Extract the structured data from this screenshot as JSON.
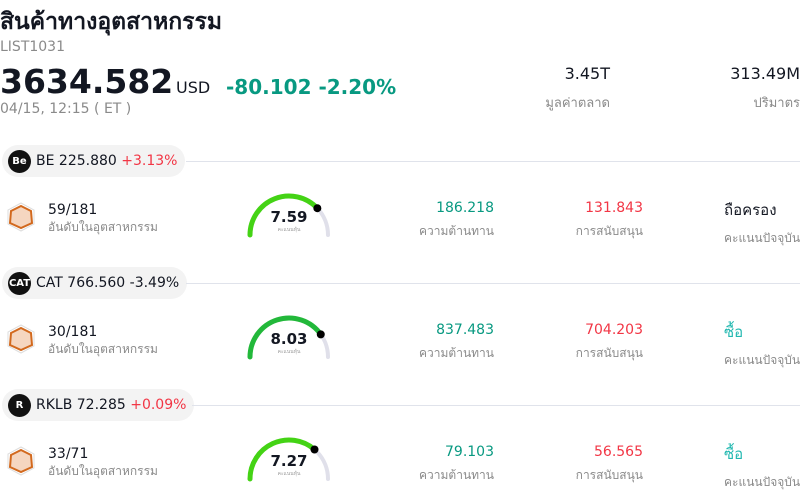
{
  "header": {
    "title": "สินค้าทางอุตสาหกรรม",
    "symbol": "LIST1031",
    "price": "3634.582",
    "currency": "USD",
    "change": "-80.102 -2.20%",
    "time": "04/15, 12:15  ( ET )",
    "stats": [
      {
        "value": "3.45T",
        "label": "มูลค่าตลาด"
      },
      {
        "value": "313.49M",
        "label": "ปริมาตร"
      }
    ]
  },
  "colors": {
    "up": "#f23645",
    "down": "#089981",
    "gauge_track": "#e0e0ea"
  },
  "stocks": [
    {
      "ticker": "BE",
      "price": "225.880",
      "change": "+3.13%",
      "dir": "up",
      "logo": "Be",
      "rank": "59/181",
      "rank_label": "อันดับในอุตสาหกรรม",
      "score": "7.59",
      "score_label": "คะแนนหุ้น",
      "gauge_color": "#44d315",
      "resistance": "186.218",
      "resistance_label": "ความต้านทาน",
      "support": "131.843",
      "support_label": "การสนับสนุน",
      "rating": "ถือครอง",
      "rating_color": "#131722",
      "rating_label": "คะแนนปัจจุบัน"
    },
    {
      "ticker": "CAT",
      "price": "766.560",
      "change": "-3.49%",
      "dir": "down",
      "logo": "CAT",
      "rank": "30/181",
      "rank_label": "อันดับในอุตสาหกรรม",
      "score": "8.03",
      "score_label": "คะแนนหุ้น",
      "gauge_color": "#22b83a",
      "resistance": "837.483",
      "resistance_label": "ความต้านทาน",
      "support": "704.203",
      "support_label": "การสนับสนุน",
      "rating": "ซื้อ",
      "rating_color": "#22b8b0",
      "rating_label": "คะแนนปัจจุบัน"
    },
    {
      "ticker": "RKLB",
      "price": "72.285",
      "change": "+0.09%",
      "dir": "up",
      "logo": "R",
      "rank": "33/71",
      "rank_label": "อันดับในอุตสาหกรรม",
      "score": "7.27",
      "score_label": "คะแนนหุ้น",
      "gauge_color": "#44d315",
      "resistance": "79.103",
      "resistance_label": "ความต้านทาน",
      "support": "56.565",
      "support_label": "การสนับสนุน",
      "rating": "ซื้อ",
      "rating_color": "#22b8b0",
      "rating_label": "คะแนนปัจจุบัน"
    }
  ]
}
